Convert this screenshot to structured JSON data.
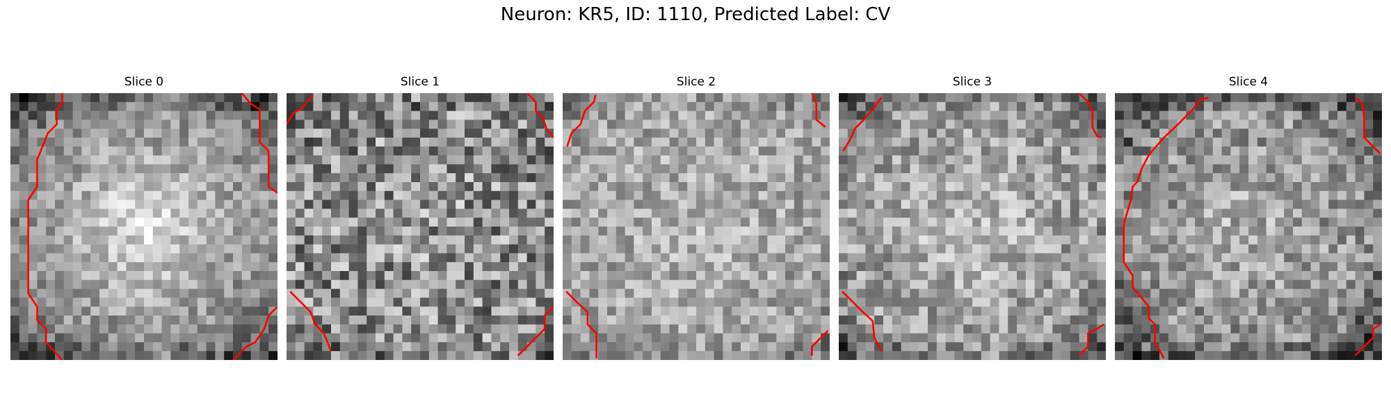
{
  "figure": {
    "title": "Neuron: KR5, ID: 1110, Predicted Label: CV"
  },
  "panels": [
    {
      "title": "Slice 0",
      "seed": 11,
      "style": "bright-disc"
    },
    {
      "title": "Slice 1",
      "seed": 23,
      "style": "noisy"
    },
    {
      "title": "Slice 2",
      "seed": 37,
      "style": "mid"
    },
    {
      "title": "Slice 3",
      "seed": 41,
      "style": "mid-dark-edge"
    },
    {
      "title": "Slice 4",
      "seed": 53,
      "style": "dark-edge"
    }
  ],
  "colors": {
    "contour": "#ff0000",
    "background": "#ffffff"
  },
  "colormap": "gray",
  "grid_size": 30
}
